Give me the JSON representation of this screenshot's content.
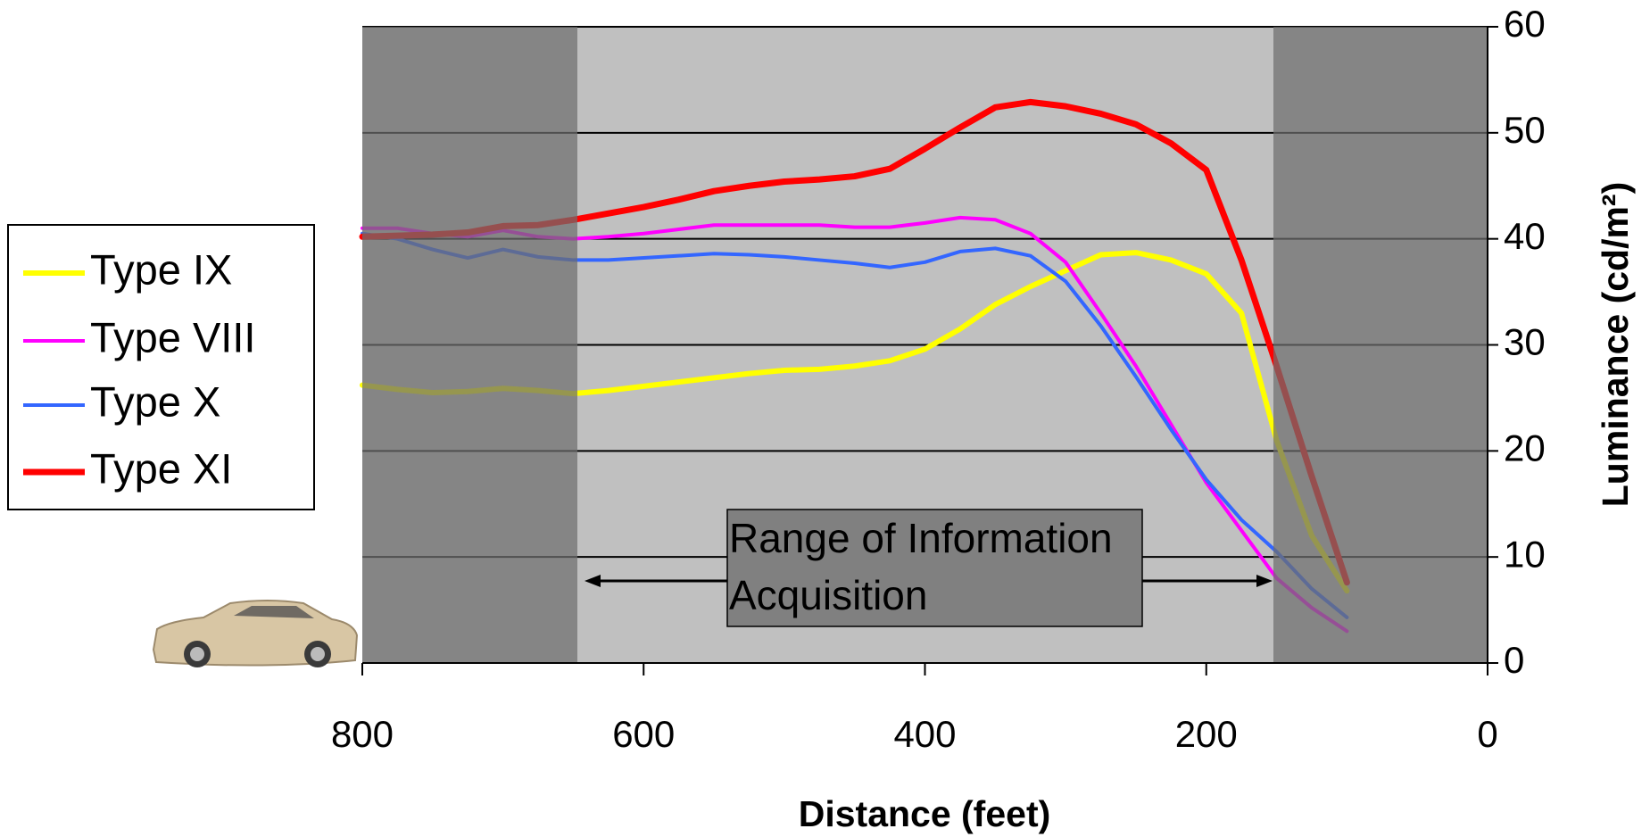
{
  "chart_data": {
    "type": "line",
    "x_label": "Distance (feet)",
    "y_label": "Luminance (cd/m²)",
    "annotation": [
      "Range of Information",
      "Acquisition"
    ],
    "x": [
      800,
      775,
      750,
      725,
      700,
      675,
      650,
      625,
      600,
      575,
      550,
      525,
      500,
      475,
      450,
      425,
      400,
      375,
      350,
      325,
      300,
      275,
      250,
      225,
      200,
      175,
      150,
      125,
      100
    ],
    "series": [
      {
        "name": "Type IX",
        "color": "#ffff00",
        "width": 6,
        "values": [
          26.2,
          25.8,
          25.5,
          25.6,
          25.9,
          25.7,
          25.4,
          25.7,
          26.1,
          26.5,
          26.9,
          27.3,
          27.6,
          27.7,
          28,
          28.5,
          29.6,
          31.5,
          33.8,
          35.5,
          37,
          38.5,
          38.7,
          38,
          36.7,
          33,
          21,
          12,
          6.8
        ]
      },
      {
        "name": "Type VIII",
        "color": "#ff00ff",
        "width": 4,
        "values": [
          41,
          41,
          40.5,
          40.2,
          40.8,
          40.2,
          40,
          40.2,
          40.5,
          40.9,
          41.3,
          41.3,
          41.3,
          41.3,
          41.1,
          41.1,
          41.5,
          42,
          41.8,
          40.5,
          37.8,
          33,
          28,
          22.5,
          17,
          12.5,
          8,
          5.2,
          3
        ]
      },
      {
        "name": "Type X",
        "color": "#3366ff",
        "width": 4,
        "values": [
          40.5,
          40,
          39,
          38.2,
          39,
          38.3,
          38,
          38,
          38.2,
          38.4,
          38.6,
          38.5,
          38.3,
          38,
          37.7,
          37.3,
          37.8,
          38.8,
          39.1,
          38.4,
          36,
          31.8,
          27,
          22,
          17.3,
          13.5,
          10.5,
          7,
          4.3
        ]
      },
      {
        "name": "Type XI",
        "color": "#ff0000",
        "width": 7,
        "values": [
          40.2,
          40.3,
          40.4,
          40.6,
          41.2,
          41.3,
          41.8,
          42.4,
          43,
          43.7,
          44.5,
          45,
          45.4,
          45.6,
          45.9,
          46.6,
          48.5,
          50.5,
          52.4,
          52.9,
          52.5,
          51.8,
          50.8,
          49,
          46.5,
          38,
          28,
          17.6,
          7.6
        ]
      }
    ],
    "xlim": [
      800,
      0
    ],
    "xticks": [
      800,
      600,
      400,
      200,
      0
    ],
    "ylim": [
      0,
      60
    ],
    "yticks": [
      0,
      10,
      20,
      30,
      40,
      50,
      60
    ],
    "grid": true
  }
}
